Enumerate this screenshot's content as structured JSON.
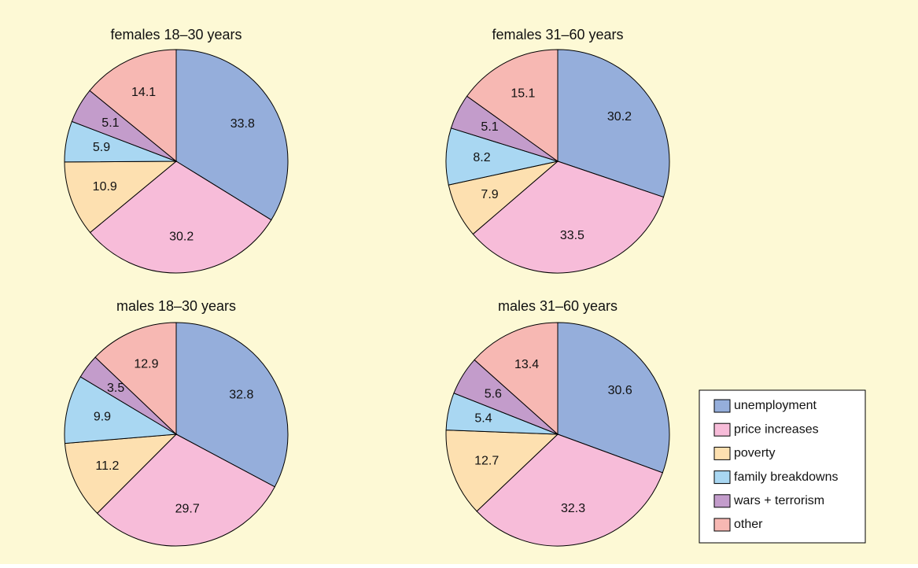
{
  "chart_data": [
    {
      "type": "pie",
      "title": "females 18–30 years",
      "values": [
        33.8,
        30.2,
        10.9,
        5.9,
        5.1,
        14.1
      ]
    },
    {
      "type": "pie",
      "title": "females 31–60 years",
      "values": [
        30.2,
        33.5,
        7.9,
        8.2,
        5.1,
        15.1
      ]
    },
    {
      "type": "pie",
      "title": "males 18–30 years",
      "values": [
        32.8,
        29.7,
        11.2,
        9.9,
        3.5,
        12.9
      ]
    },
    {
      "type": "pie",
      "title": "males 31–60 years",
      "values": [
        30.6,
        32.3,
        12.7,
        5.4,
        5.6,
        13.4
      ]
    }
  ],
  "legend": {
    "position": "lower right",
    "labels": [
      "unemployment",
      "price increases",
      "poverty",
      "family breakdowns",
      "wars + terrorism",
      "other"
    ],
    "colors": [
      "#95aedb",
      "#f7bcd9",
      "#fde0b0",
      "#a9d7f2",
      "#c39ccb",
      "#f7b8b3"
    ]
  }
}
